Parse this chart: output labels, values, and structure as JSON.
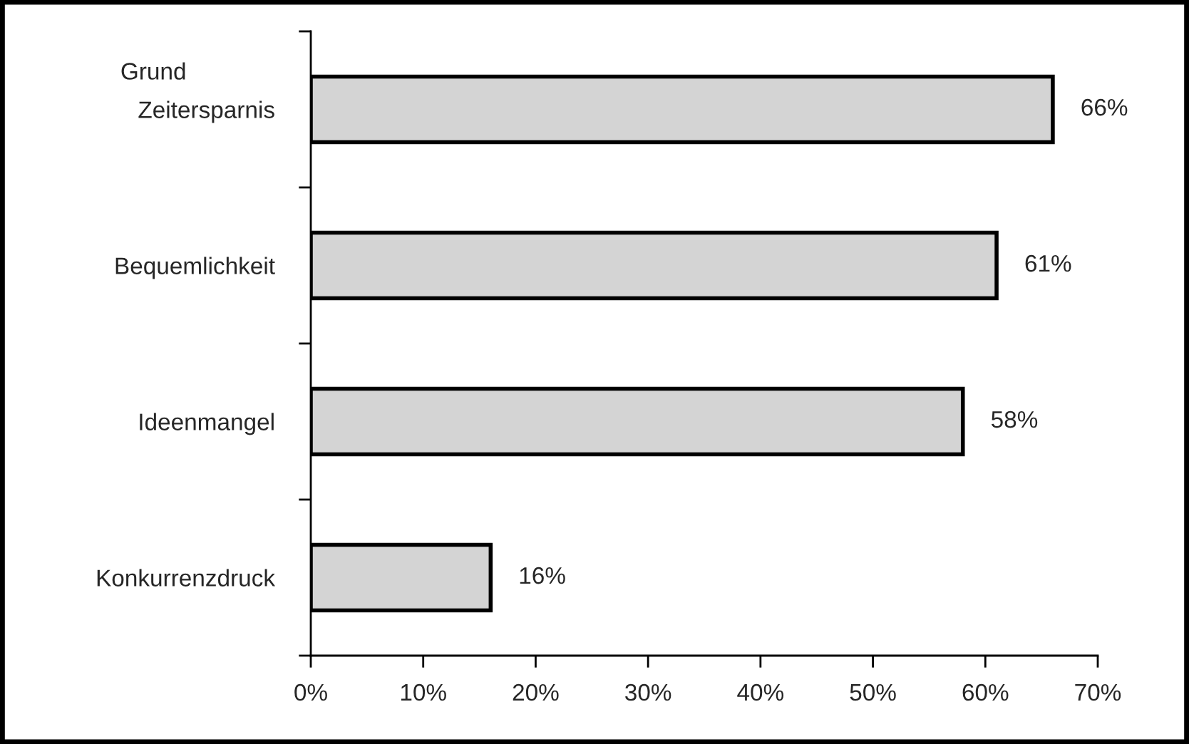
{
  "chart_data": {
    "type": "bar",
    "orientation": "horizontal",
    "ylabel": "Grund",
    "categories": [
      "Zeitersparnis",
      "Bequemlichkeit",
      "Ideenmangel",
      "Konkurrenzdruck"
    ],
    "values": [
      66,
      61,
      58,
      16
    ],
    "value_labels": [
      "66%",
      "61%",
      "58%",
      "16%"
    ],
    "color": "#d4d4d4",
    "xlim": [
      0,
      70
    ],
    "xticks": [
      {
        "value": 0,
        "label": "0%"
      },
      {
        "value": 10,
        "label": "10%"
      },
      {
        "value": 20,
        "label": "20%"
      },
      {
        "value": 30,
        "label": "30%"
      },
      {
        "value": 40,
        "label": "40%"
      },
      {
        "value": 50,
        "label": "50%"
      },
      {
        "value": 60,
        "label": "60%"
      },
      {
        "value": 70,
        "label": "70%"
      }
    ],
    "grid": false,
    "legend": false
  }
}
